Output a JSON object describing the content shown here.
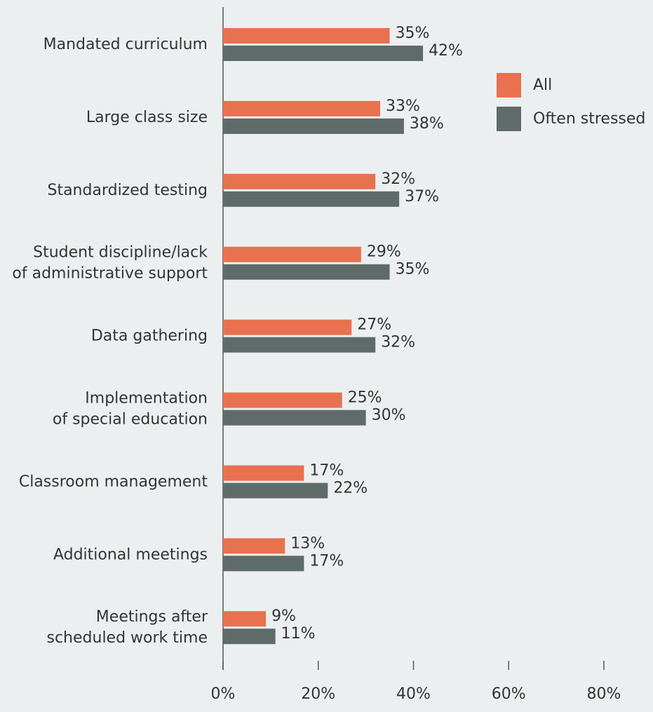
{
  "chart_data": {
    "type": "hbar",
    "categories": [
      "Mandated curriculum",
      "Large class size",
      "Standardized testing",
      "Student discipline/lack\nof administrative support",
      "Data gathering",
      "Implementation\nof special education",
      "Classroom management",
      "Additional meetings",
      "Meetings after\nscheduled work time"
    ],
    "series": [
      {
        "name": "All",
        "color": "#e8714f",
        "values": [
          35,
          33,
          32,
          29,
          27,
          25,
          17,
          13,
          9
        ],
        "value_labels": [
          "35%",
          "33%",
          "32%",
          "29%",
          "27%",
          "25%",
          "17%",
          "13%",
          "9%"
        ]
      },
      {
        "name": "Often stressed",
        "color": "#5f6b68",
        "values": [
          42,
          38,
          37,
          35,
          32,
          30,
          22,
          17,
          11
        ],
        "value_labels": [
          "42%",
          "38%",
          "37%",
          "35%",
          "32%",
          "30%",
          "22%",
          "17%",
          "11%"
        ]
      }
    ],
    "xlim": [
      0,
      80
    ],
    "xticks": [
      {
        "value": 0,
        "label": "0%"
      },
      {
        "value": 20,
        "label": "20%"
      },
      {
        "value": 40,
        "label": "40%"
      },
      {
        "value": 60,
        "label": "60%"
      },
      {
        "value": 80,
        "label": "80%"
      }
    ],
    "legend": "upper right"
  }
}
